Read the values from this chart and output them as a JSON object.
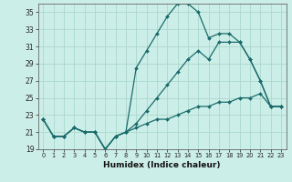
{
  "xlabel": "Humidex (Indice chaleur)",
  "bg_color": "#cceee8",
  "line_color": "#1a6b6b",
  "grid_color": "#aad8cc",
  "ylim": [
    19,
    36
  ],
  "xlim": [
    -0.5,
    23.5
  ],
  "yticks": [
    19,
    21,
    23,
    25,
    27,
    29,
    31,
    33,
    35
  ],
  "xticks": [
    0,
    1,
    2,
    3,
    4,
    5,
    6,
    7,
    8,
    9,
    10,
    11,
    12,
    13,
    14,
    15,
    16,
    17,
    18,
    19,
    20,
    21,
    22,
    23
  ],
  "series": [
    {
      "x": [
        0,
        1,
        2,
        3,
        4,
        5,
        6,
        7,
        8,
        9,
        10,
        11,
        12,
        13,
        14,
        15,
        16,
        17,
        18,
        19,
        20,
        21,
        22,
        23
      ],
      "y": [
        22.5,
        20.5,
        20.5,
        21.5,
        21.0,
        21.0,
        19.0,
        20.5,
        21.0,
        28.5,
        30.5,
        32.5,
        34.5,
        36.0,
        36.0,
        35.0,
        32.0,
        32.5,
        32.5,
        31.5,
        29.5,
        27.0,
        24.0,
        24.0
      ]
    },
    {
      "x": [
        0,
        1,
        2,
        3,
        4,
        5,
        6,
        7,
        8,
        9,
        10,
        11,
        12,
        13,
        14,
        15,
        16,
        17,
        18,
        19,
        20,
        21,
        22,
        23
      ],
      "y": [
        22.5,
        20.5,
        20.5,
        21.5,
        21.0,
        21.0,
        19.0,
        20.5,
        21.0,
        22.0,
        23.5,
        25.0,
        26.5,
        28.0,
        29.5,
        30.5,
        29.5,
        31.5,
        31.5,
        31.5,
        29.5,
        27.0,
        24.0,
        24.0
      ]
    },
    {
      "x": [
        0,
        1,
        2,
        3,
        4,
        5,
        6,
        7,
        8,
        9,
        10,
        11,
        12,
        13,
        14,
        15,
        16,
        17,
        18,
        19,
        20,
        21,
        22,
        23
      ],
      "y": [
        22.5,
        20.5,
        20.5,
        21.5,
        21.0,
        21.0,
        19.0,
        20.5,
        21.0,
        21.5,
        22.0,
        22.5,
        22.5,
        23.0,
        23.5,
        24.0,
        24.0,
        24.5,
        24.5,
        25.0,
        25.0,
        25.5,
        24.0,
        24.0
      ]
    }
  ]
}
